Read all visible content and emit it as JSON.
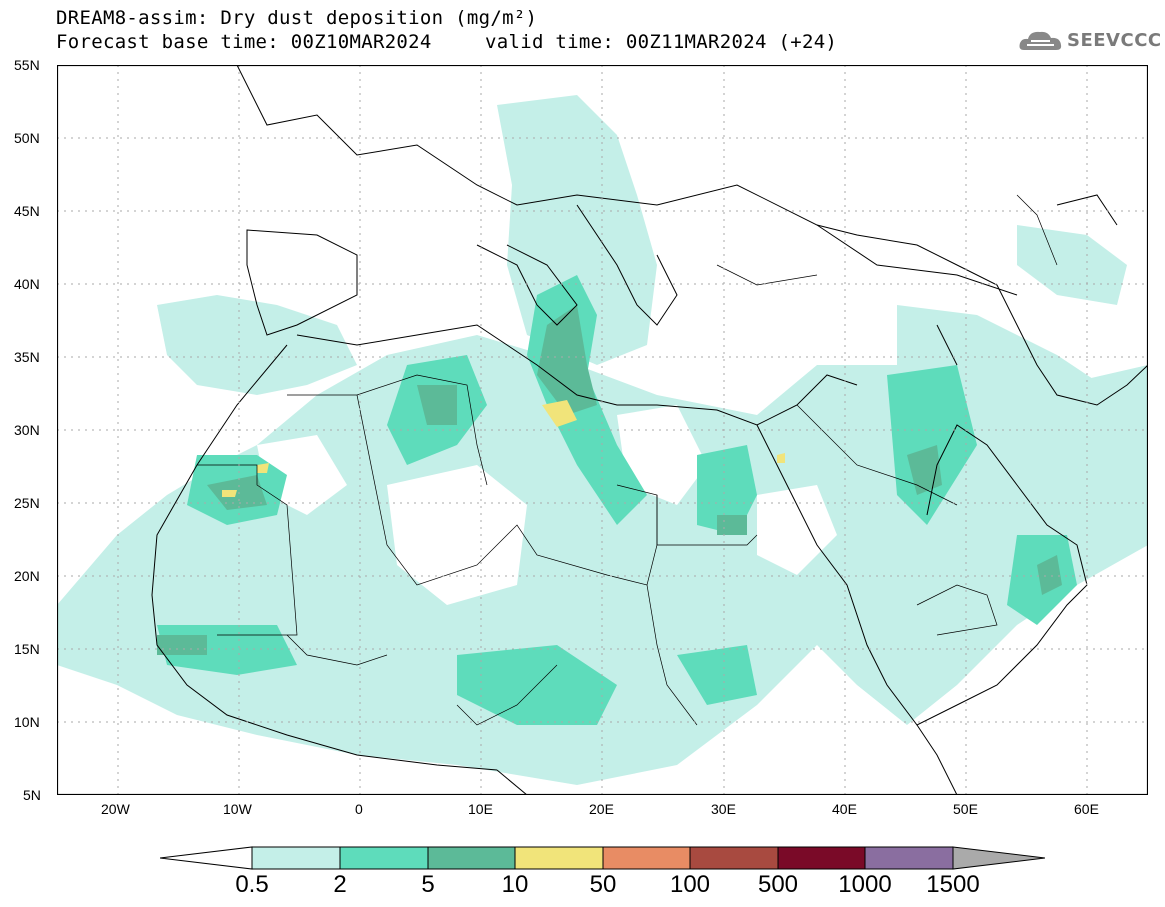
{
  "header": {
    "title_line1": "DREAM8-assim: Dry dust deposition (mg/m²)",
    "base_time": "Forecast base time: 00Z10MAR2024",
    "valid_time": "valid time: 00Z11MAR2024 (+24)"
  },
  "logo": {
    "text": "SEEVCCC",
    "icon": "cloud-logo-icon"
  },
  "map": {
    "lat_labels": [
      "55N",
      "50N",
      "45N",
      "40N",
      "35N",
      "30N",
      "25N",
      "20N",
      "15N",
      "10N",
      "5N"
    ],
    "lon_labels": [
      "20W",
      "10W",
      "0",
      "10E",
      "20E",
      "30E",
      "40E",
      "50E",
      "60E"
    ],
    "lat_range": [
      5,
      55
    ],
    "lon_range": [
      -25,
      65
    ]
  },
  "colorbar": {
    "labels": [
      "0.5",
      "2",
      "5",
      "10",
      "50",
      "100",
      "500",
      "1000",
      "1500"
    ],
    "colors": [
      "#c4efe8",
      "#5edcbb",
      "#5cba98",
      "#f1e47a",
      "#e88c64",
      "#a84a40",
      "#7a0a28",
      "#8a6ea0"
    ],
    "extend_low": "#ffffff",
    "extend_high": "#aaaaaa"
  }
}
